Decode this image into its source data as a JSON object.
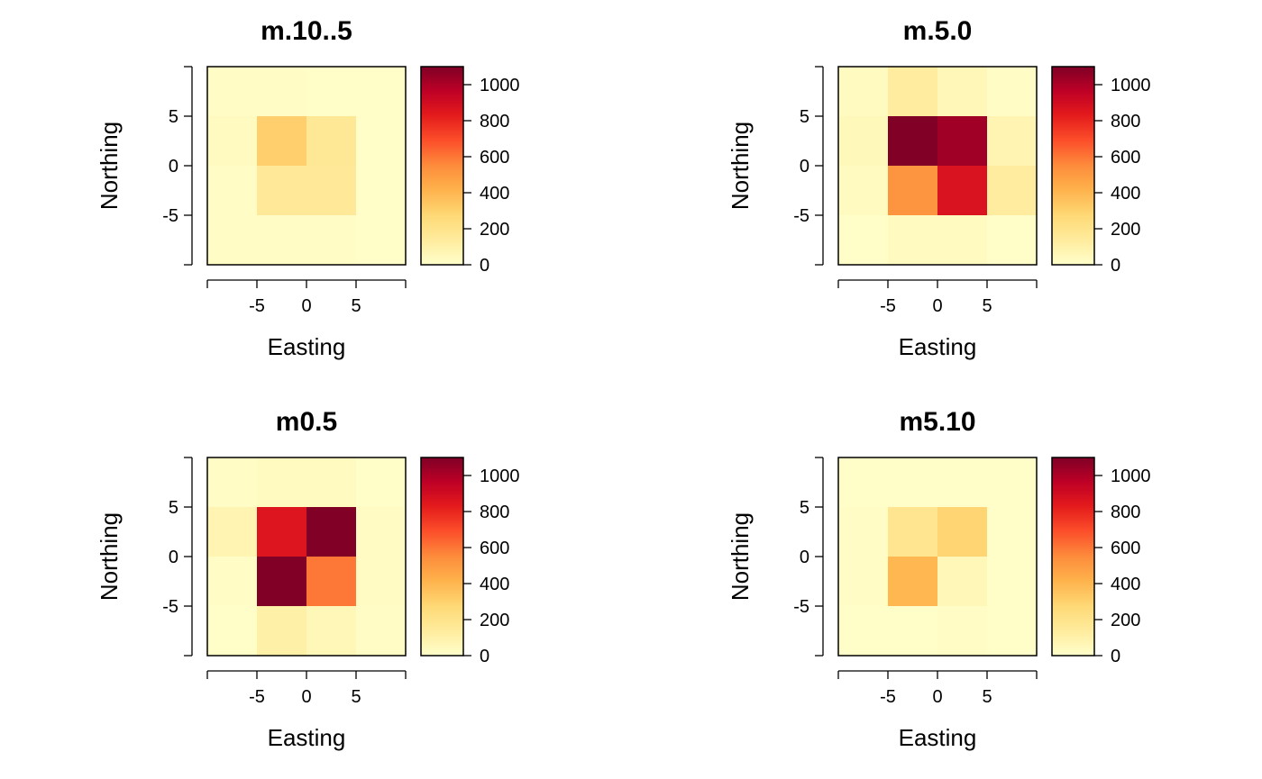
{
  "chart_data": [
    {
      "type": "heatmap",
      "title": "m.10..5",
      "xlabel": "Easting",
      "ylabel": "Northing",
      "x_ticks": [
        "-5",
        "0",
        "5"
      ],
      "y_ticks": [
        "-5",
        "0",
        "5"
      ],
      "x_bins": [
        -10,
        -5,
        0,
        5,
        10
      ],
      "y_bins": [
        -10,
        -5,
        0,
        5,
        10
      ],
      "cells_north_to_south": [
        [
          20,
          20,
          10,
          10
        ],
        [
          40,
          310,
          170,
          10
        ],
        [
          20,
          160,
          160,
          10
        ],
        [
          20,
          20,
          20,
          10
        ]
      ],
      "colorbar": {
        "ticks": [
          "0",
          "200",
          "400",
          "600",
          "800",
          "1000"
        ],
        "range": [
          0,
          1100
        ]
      }
    },
    {
      "type": "heatmap",
      "title": "m.5.0",
      "xlabel": "Easting",
      "ylabel": "Northing",
      "x_ticks": [
        "-5",
        "0",
        "5"
      ],
      "y_ticks": [
        "-5",
        "0",
        "5"
      ],
      "x_bins": [
        -10,
        -5,
        0,
        5,
        10
      ],
      "y_bins": [
        -10,
        -5,
        0,
        5,
        10
      ],
      "cells_north_to_south": [
        [
          40,
          140,
          60,
          20
        ],
        [
          50,
          1100,
          1030,
          80
        ],
        [
          40,
          520,
          870,
          140
        ],
        [
          10,
          40,
          40,
          10
        ]
      ],
      "colorbar": {
        "ticks": [
          "0",
          "200",
          "400",
          "600",
          "800",
          "1000"
        ],
        "range": [
          0,
          1100
        ]
      }
    },
    {
      "type": "heatmap",
      "title": "m0.5",
      "xlabel": "Easting",
      "ylabel": "Northing",
      "x_ticks": [
        "-5",
        "0",
        "5"
      ],
      "y_ticks": [
        "-5",
        "0",
        "5"
      ],
      "x_bins": [
        -10,
        -5,
        0,
        5,
        10
      ],
      "y_bins": [
        -10,
        -5,
        0,
        5,
        10
      ],
      "cells_north_to_south": [
        [
          20,
          40,
          40,
          10
        ],
        [
          80,
          860,
          1100,
          30
        ],
        [
          20,
          1100,
          600,
          30
        ],
        [
          10,
          110,
          60,
          20
        ]
      ],
      "colorbar": {
        "ticks": [
          "0",
          "200",
          "400",
          "600",
          "800",
          "1000"
        ],
        "range": [
          0,
          1100
        ]
      }
    },
    {
      "type": "heatmap",
      "title": "m5.10",
      "xlabel": "Easting",
      "ylabel": "Northing",
      "x_ticks": [
        "-5",
        "0",
        "5"
      ],
      "y_ticks": [
        "-5",
        "0",
        "5"
      ],
      "x_bins": [
        -10,
        -5,
        0,
        5,
        10
      ],
      "y_bins": [
        -10,
        -5,
        0,
        5,
        10
      ],
      "cells_north_to_south": [
        [
          10,
          10,
          10,
          10
        ],
        [
          20,
          190,
          290,
          10
        ],
        [
          20,
          400,
          60,
          10
        ],
        [
          10,
          10,
          20,
          10
        ]
      ],
      "colorbar": {
        "ticks": [
          "0",
          "200",
          "400",
          "600",
          "800",
          "1000"
        ],
        "range": [
          0,
          1100
        ]
      }
    }
  ]
}
